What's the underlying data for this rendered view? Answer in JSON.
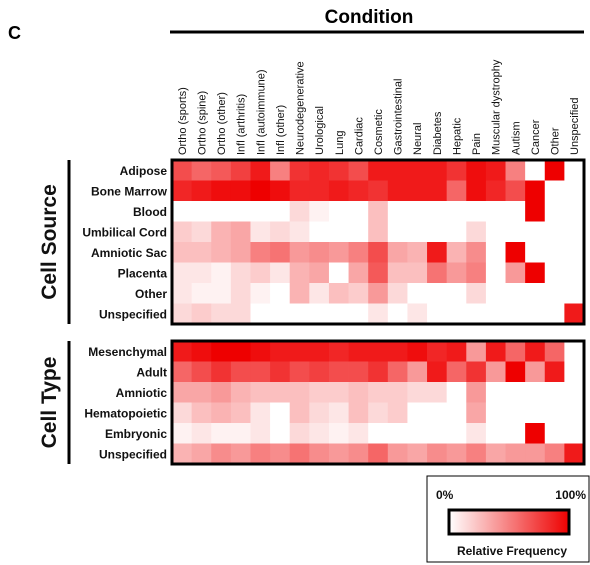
{
  "panel_label": "C",
  "chart_data": {
    "type": "heatmap",
    "title": "Condition",
    "columns": [
      "Ortho (sports)",
      "Ortho (spine)",
      "Ortho (other)",
      "Infl (arthritis)",
      "Infl (autoimmune)",
      "Infl (other)",
      "Neurodegenerative",
      "Urological",
      "Lung",
      "Cardiac",
      "Cosmetic",
      "Gastrointestinal",
      "Neural",
      "Diabetes",
      "Hepatic",
      "Pain",
      "Muscular dystrophy",
      "Autism",
      "Cancer",
      "Other",
      "Unspecified"
    ],
    "groups": [
      {
        "name": "Cell Source",
        "rows": [
          "Adipose",
          "Bone Marrow",
          "Blood",
          "Umbilical Cord",
          "Amniotic Sac",
          "Placenta",
          "Other",
          "Unspecified"
        ],
        "values": [
          [
            0.7,
            0.6,
            0.65,
            0.75,
            0.9,
            0.5,
            0.8,
            0.85,
            0.8,
            0.7,
            0.9,
            0.9,
            0.9,
            0.9,
            0.8,
            0.95,
            0.9,
            0.5,
            0.0,
            1.0,
            0.0
          ],
          [
            0.85,
            0.9,
            0.95,
            0.95,
            1.0,
            0.95,
            0.85,
            0.85,
            0.9,
            0.85,
            0.8,
            0.9,
            0.9,
            0.9,
            0.6,
            0.95,
            0.85,
            0.7,
            1.0,
            0.0,
            0.0
          ],
          [
            0.0,
            0.0,
            0.0,
            0.0,
            0.0,
            0.0,
            0.15,
            0.05,
            0.0,
            0.0,
            0.25,
            0.0,
            0.0,
            0.0,
            0.0,
            0.0,
            0.0,
            0.0,
            1.0,
            0.0,
            0.0
          ],
          [
            0.2,
            0.15,
            0.3,
            0.35,
            0.1,
            0.15,
            0.1,
            0.0,
            0.0,
            0.0,
            0.25,
            0.0,
            0.0,
            0.0,
            0.0,
            0.15,
            0.0,
            0.0,
            0.0,
            0.0,
            0.0
          ],
          [
            0.25,
            0.25,
            0.3,
            0.35,
            0.5,
            0.55,
            0.4,
            0.45,
            0.4,
            0.5,
            0.7,
            0.35,
            0.3,
            0.9,
            0.3,
            0.45,
            0.0,
            1.0,
            0.0,
            0.0,
            0.0
          ],
          [
            0.1,
            0.1,
            0.05,
            0.15,
            0.2,
            0.1,
            0.3,
            0.35,
            0.0,
            0.35,
            0.65,
            0.25,
            0.25,
            0.55,
            0.4,
            0.5,
            0.0,
            0.4,
            1.0,
            0.0,
            0.0
          ],
          [
            0.1,
            0.05,
            0.05,
            0.15,
            0.05,
            0.0,
            0.3,
            0.1,
            0.25,
            0.2,
            0.4,
            0.15,
            0.0,
            0.0,
            0.0,
            0.15,
            0.0,
            0.0,
            0.0,
            0.0,
            0.0
          ],
          [
            0.15,
            0.2,
            0.15,
            0.15,
            0.0,
            0.0,
            0.0,
            0.0,
            0.0,
            0.0,
            0.1,
            0.0,
            0.1,
            0.0,
            0.0,
            0.0,
            0.0,
            0.0,
            0.0,
            0.0,
            0.9
          ]
        ]
      },
      {
        "name": "Cell Type",
        "rows": [
          "Mesenchymal",
          "Adult",
          "Amniotic",
          "Hematopoietic",
          "Embryonic",
          "Unspecified"
        ],
        "values": [
          [
            0.9,
            0.95,
            1.0,
            1.0,
            0.95,
            0.9,
            0.9,
            0.9,
            0.85,
            0.9,
            0.9,
            0.9,
            0.95,
            0.85,
            0.9,
            0.4,
            0.9,
            0.6,
            0.9,
            0.6,
            0.0
          ],
          [
            0.6,
            0.7,
            0.8,
            0.7,
            0.7,
            0.8,
            0.7,
            0.75,
            0.7,
            0.7,
            0.8,
            0.6,
            0.4,
            0.9,
            0.6,
            0.8,
            0.4,
            1.0,
            0.4,
            0.9,
            0.0
          ],
          [
            0.35,
            0.35,
            0.4,
            0.3,
            0.25,
            0.25,
            0.25,
            0.2,
            0.2,
            0.25,
            0.2,
            0.2,
            0.15,
            0.15,
            0.0,
            0.4,
            0.0,
            0.0,
            0.0,
            0.0,
            0.0
          ],
          [
            0.15,
            0.25,
            0.3,
            0.25,
            0.1,
            0.0,
            0.25,
            0.15,
            0.1,
            0.25,
            0.15,
            0.2,
            0.0,
            0.0,
            0.0,
            0.35,
            0.0,
            0.0,
            0.0,
            0.0,
            0.0
          ],
          [
            0.05,
            0.1,
            0.05,
            0.05,
            0.1,
            0.0,
            0.15,
            0.1,
            0.05,
            0.1,
            0.0,
            0.0,
            0.0,
            0.0,
            0.0,
            0.1,
            0.0,
            0.0,
            1.0,
            0.0,
            0.0
          ],
          [
            0.3,
            0.35,
            0.45,
            0.4,
            0.5,
            0.45,
            0.55,
            0.45,
            0.4,
            0.45,
            0.6,
            0.4,
            0.35,
            0.45,
            0.4,
            0.5,
            0.35,
            0.4,
            0.4,
            0.5,
            0.9
          ]
        ]
      }
    ],
    "value_range": [
      0,
      1
    ],
    "legend": {
      "title": "Relative Frequency",
      "min_label": "0%",
      "max_label": "100%",
      "placement": "bottom-right"
    },
    "colors": {
      "low": "#ffffff",
      "high": "#ee0000"
    }
  }
}
